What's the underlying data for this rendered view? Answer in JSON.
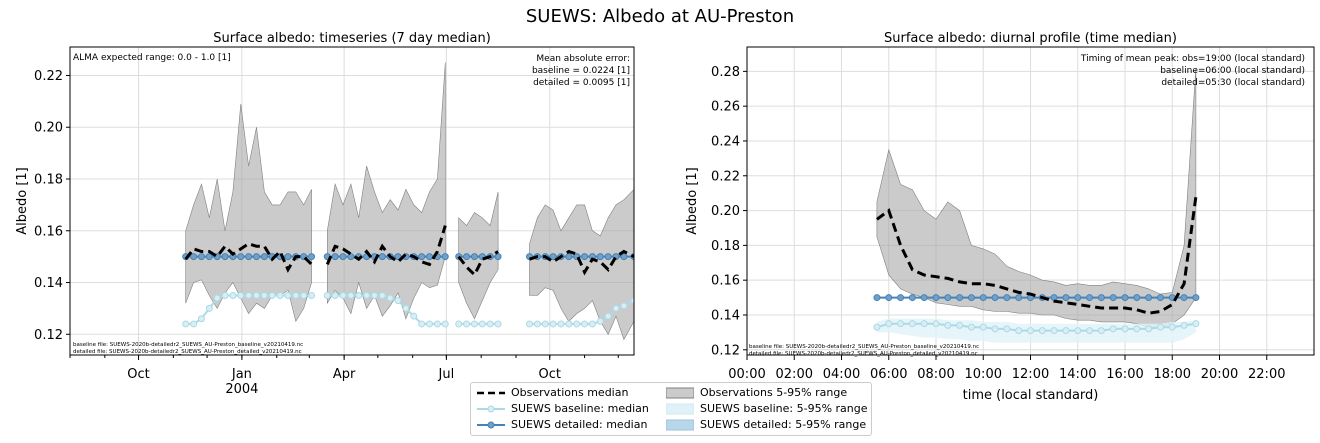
{
  "figure_title": "SUEWS: Albedo at AU-Preston",
  "colors": {
    "obs": "#000000",
    "obs_band": "#a9a9a9",
    "baseline": "#add8e6",
    "detailed": "#4682b4",
    "baseline_band": "#e0f2f8",
    "detailed_band": "#b8d7ea",
    "grid": "#dddddd"
  },
  "chart_data": [
    {
      "type": "line",
      "title": "Surface albedo: timeseries (7 day median)",
      "xlabel": "",
      "ylabel": "Albedo [1]",
      "xlim": [
        "2003-08-01",
        "2004-12-15"
      ],
      "ylim": [
        0.112,
        0.231
      ],
      "yticks": [
        0.12,
        0.14,
        0.16,
        0.18,
        0.2,
        0.22
      ],
      "ytick_labels": [
        "0.12",
        "0.14",
        "0.16",
        "0.18",
        "0.20",
        "0.22"
      ],
      "xtick_dates": [
        "2003-10-01",
        "2004-01-01",
        "2004-04-01",
        "2004-07-01",
        "2004-10-01"
      ],
      "xtick_labels": [
        "Oct",
        "Jan\n2004",
        "Apr",
        "Jul",
        "Oct"
      ],
      "grid": true,
      "annotation_left": "ALMA expected range: 0.0 - 1.0 [1]",
      "annotation_right": [
        "Mean absolute error:",
        "baseline = 0.0224 [1]",
        "detailed = 0.0095 [1]"
      ],
      "footer_lines": [
        "baseline file: SUEWS-2020b-detailedr2_SUEWS_AU-Preston_baseline_v20210419.nc",
        "detailed file: SUEWS-2020b-detailedr2_SUEWS_AU-Preston_detailed_v20210419.nc"
      ],
      "segments": [
        {
          "x": [
            "2003-11-12",
            "2003-11-19",
            "2003-11-26",
            "2003-12-03",
            "2003-12-10",
            "2003-12-17",
            "2003-12-24",
            "2003-12-31",
            "2004-01-07",
            "2004-01-14",
            "2004-01-21",
            "2004-01-28",
            "2004-02-04",
            "2004-02-11",
            "2004-02-18",
            "2004-02-25",
            "2004-03-03"
          ],
          "obs_median": [
            0.149,
            0.153,
            0.152,
            0.152,
            0.15,
            0.154,
            0.151,
            0.153,
            0.155,
            0.154,
            0.154,
            0.149,
            0.152,
            0.145,
            0.15,
            0.15,
            0.147
          ],
          "obs_p5": [
            0.132,
            0.14,
            0.141,
            0.135,
            0.13,
            0.136,
            0.14,
            0.134,
            0.128,
            0.132,
            0.13,
            0.135,
            0.135,
            0.137,
            0.125,
            0.13,
            0.14
          ],
          "obs_p95": [
            0.16,
            0.17,
            0.178,
            0.165,
            0.18,
            0.16,
            0.175,
            0.209,
            0.185,
            0.2,
            0.175,
            0.17,
            0.17,
            0.175,
            0.175,
            0.17,
            0.176
          ],
          "baseline": [
            0.124,
            0.124,
            0.126,
            0.13,
            0.134,
            0.135,
            0.135,
            0.135,
            0.135,
            0.135,
            0.135,
            0.135,
            0.135,
            0.135,
            0.135,
            0.135,
            0.135
          ],
          "detailed": [
            0.15,
            0.15,
            0.15,
            0.15,
            0.15,
            0.15,
            0.15,
            0.15,
            0.15,
            0.15,
            0.15,
            0.15,
            0.15,
            0.15,
            0.15,
            0.15,
            0.15
          ]
        },
        {
          "x": [
            "2004-03-17",
            "2004-03-24",
            "2004-03-31",
            "2004-04-07",
            "2004-04-14",
            "2004-04-21",
            "2004-04-28",
            "2004-05-05",
            "2004-05-12",
            "2004-05-19",
            "2004-05-26",
            "2004-06-02",
            "2004-06-09",
            "2004-06-16",
            "2004-06-23",
            "2004-06-30"
          ],
          "obs_median": [
            0.147,
            0.154,
            0.153,
            0.151,
            0.149,
            0.152,
            0.148,
            0.154,
            0.15,
            0.148,
            0.151,
            0.15,
            0.148,
            0.147,
            0.152,
            0.162
          ],
          "obs_p5": [
            0.132,
            0.137,
            0.134,
            0.128,
            0.14,
            0.13,
            0.135,
            0.127,
            0.131,
            0.136,
            0.126,
            0.134,
            0.14,
            0.138,
            0.139,
            0.15
          ],
          "obs_p95": [
            0.16,
            0.178,
            0.17,
            0.178,
            0.165,
            0.185,
            0.175,
            0.167,
            0.172,
            0.168,
            0.176,
            0.17,
            0.167,
            0.175,
            0.18,
            0.225
          ],
          "baseline": [
            0.135,
            0.135,
            0.135,
            0.135,
            0.135,
            0.135,
            0.135,
            0.135,
            0.134,
            0.133,
            0.13,
            0.127,
            0.124,
            0.124,
            0.124,
            0.124
          ],
          "detailed": [
            0.15,
            0.15,
            0.15,
            0.15,
            0.15,
            0.15,
            0.15,
            0.15,
            0.15,
            0.15,
            0.15,
            0.15,
            0.15,
            0.15,
            0.15,
            0.15
          ]
        },
        {
          "x": [
            "2004-07-12",
            "2004-07-19",
            "2004-07-26",
            "2004-08-02",
            "2004-08-09",
            "2004-08-16"
          ],
          "obs_median": [
            0.15,
            0.146,
            0.143,
            0.149,
            0.15,
            0.152
          ],
          "obs_p5": [
            0.14,
            0.132,
            0.126,
            0.133,
            0.14,
            0.145
          ],
          "obs_p95": [
            0.165,
            0.162,
            0.167,
            0.165,
            0.162,
            0.175
          ],
          "baseline": [
            0.124,
            0.124,
            0.124,
            0.124,
            0.124,
            0.124
          ],
          "detailed": [
            0.15,
            0.15,
            0.15,
            0.15,
            0.15,
            0.15
          ]
        },
        {
          "x": [
            "2004-09-13",
            "2004-09-20",
            "2004-09-27",
            "2004-10-04",
            "2004-10-11",
            "2004-10-18",
            "2004-10-25",
            "2004-11-01",
            "2004-11-08",
            "2004-11-15",
            "2004-11-22",
            "2004-11-29",
            "2004-12-06",
            "2004-12-15"
          ],
          "obs_median": [
            0.149,
            0.15,
            0.15,
            0.148,
            0.15,
            0.152,
            0.151,
            0.144,
            0.149,
            0.148,
            0.145,
            0.15,
            0.152,
            0.15
          ],
          "obs_p5": [
            0.135,
            0.135,
            0.138,
            0.137,
            0.13,
            0.125,
            0.128,
            0.13,
            0.133,
            0.125,
            0.12,
            0.127,
            0.118,
            0.125
          ],
          "obs_p95": [
            0.155,
            0.165,
            0.17,
            0.168,
            0.16,
            0.165,
            0.17,
            0.17,
            0.16,
            0.158,
            0.165,
            0.17,
            0.172,
            0.176
          ],
          "baseline": [
            0.124,
            0.124,
            0.124,
            0.124,
            0.124,
            0.124,
            0.124,
            0.124,
            0.124,
            0.125,
            0.127,
            0.13,
            0.131,
            0.133
          ],
          "detailed": [
            0.15,
            0.15,
            0.15,
            0.15,
            0.15,
            0.15,
            0.15,
            0.15,
            0.15,
            0.15,
            0.15,
            0.15,
            0.15,
            0.15
          ]
        }
      ]
    },
    {
      "type": "line",
      "title": "Surface albedo: diurnal profile (time median)",
      "xlabel": "time (local standard)",
      "ylabel": "Albedo [1]",
      "xlim": [
        0,
        24
      ],
      "ylim": [
        0.117,
        0.294
      ],
      "xticks": [
        0,
        2,
        4,
        6,
        8,
        10,
        12,
        14,
        16,
        18,
        20,
        22
      ],
      "xtick_labels": [
        "00:00",
        "02:00",
        "04:00",
        "06:00",
        "08:00",
        "10:00",
        "12:00",
        "14:00",
        "16:00",
        "18:00",
        "20:00",
        "22:00"
      ],
      "yticks": [
        0.12,
        0.14,
        0.16,
        0.18,
        0.2,
        0.22,
        0.24,
        0.26,
        0.28
      ],
      "ytick_labels": [
        "0.12",
        "0.14",
        "0.16",
        "0.18",
        "0.20",
        "0.22",
        "0.24",
        "0.26",
        "0.28"
      ],
      "grid": true,
      "annotation_right": [
        "Timing of mean peak: obs=19:00 (local standard)",
        "baseline=06:00 (local standard)",
        "detailed=05:30 (local standard)"
      ],
      "footer_lines": [
        "baseline file: SUEWS-2020b-detailedr2_SUEWS_AU-Preston_baseline_v20210419.nc",
        "detailed file: SUEWS-2020b-detailedr2_SUEWS_AU-Preston_detailed_v20210419.nc"
      ],
      "x": [
        5.5,
        6,
        6.5,
        7,
        7.5,
        8,
        8.5,
        9,
        9.5,
        10,
        10.5,
        11,
        11.5,
        12,
        12.5,
        13,
        13.5,
        14,
        14.5,
        15,
        15.5,
        16,
        16.5,
        17,
        17.5,
        18,
        18.5,
        19
      ],
      "obs_median": [
        0.195,
        0.2,
        0.18,
        0.166,
        0.163,
        0.162,
        0.161,
        0.159,
        0.158,
        0.158,
        0.157,
        0.155,
        0.153,
        0.152,
        0.15,
        0.148,
        0.147,
        0.146,
        0.145,
        0.144,
        0.144,
        0.144,
        0.143,
        0.141,
        0.142,
        0.146,
        0.158,
        0.208
      ],
      "obs_p5": [
        0.185,
        0.163,
        0.155,
        0.152,
        0.15,
        0.147,
        0.146,
        0.145,
        0.145,
        0.143,
        0.142,
        0.142,
        0.141,
        0.141,
        0.14,
        0.14,
        0.138,
        0.137,
        0.137,
        0.136,
        0.136,
        0.136,
        0.135,
        0.133,
        0.133,
        0.135,
        0.14,
        0.15
      ],
      "obs_p95": [
        0.205,
        0.235,
        0.215,
        0.212,
        0.2,
        0.195,
        0.205,
        0.2,
        0.18,
        0.178,
        0.175,
        0.168,
        0.165,
        0.163,
        0.16,
        0.159,
        0.157,
        0.158,
        0.157,
        0.157,
        0.159,
        0.158,
        0.157,
        0.155,
        0.152,
        0.153,
        0.18,
        0.282
      ],
      "baseline": [
        0.133,
        0.135,
        0.135,
        0.135,
        0.135,
        0.135,
        0.134,
        0.134,
        0.133,
        0.133,
        0.132,
        0.132,
        0.131,
        0.131,
        0.131,
        0.131,
        0.131,
        0.131,
        0.131,
        0.131,
        0.132,
        0.132,
        0.132,
        0.132,
        0.133,
        0.133,
        0.134,
        0.135
      ],
      "baseline_p5": [
        0.13,
        0.13,
        0.129,
        0.128,
        0.127,
        0.127,
        0.126,
        0.126,
        0.125,
        0.125,
        0.124,
        0.124,
        0.124,
        0.124,
        0.124,
        0.124,
        0.124,
        0.124,
        0.124,
        0.124,
        0.124,
        0.124,
        0.124,
        0.124,
        0.124,
        0.124,
        0.126,
        0.13
      ],
      "baseline_p95": [
        0.136,
        0.138,
        0.138,
        0.138,
        0.138,
        0.138,
        0.137,
        0.137,
        0.137,
        0.136,
        0.136,
        0.136,
        0.135,
        0.135,
        0.135,
        0.135,
        0.135,
        0.135,
        0.135,
        0.135,
        0.135,
        0.135,
        0.135,
        0.135,
        0.135,
        0.136,
        0.136,
        0.137
      ],
      "detailed": [
        0.15,
        0.15,
        0.15,
        0.15,
        0.15,
        0.15,
        0.15,
        0.15,
        0.15,
        0.15,
        0.15,
        0.15,
        0.15,
        0.15,
        0.15,
        0.15,
        0.15,
        0.15,
        0.15,
        0.15,
        0.15,
        0.15,
        0.15,
        0.15,
        0.15,
        0.15,
        0.15,
        0.15
      ]
    }
  ],
  "legend": {
    "obs_median": "Observations median",
    "baseline_median": "SUEWS baseline: median",
    "detailed_median": "SUEWS detailed: median",
    "obs_range": "Observations 5-95% range",
    "baseline_range": "SUEWS baseline: 5-95% range",
    "detailed_range": "SUEWS detailed: 5-95% range"
  }
}
